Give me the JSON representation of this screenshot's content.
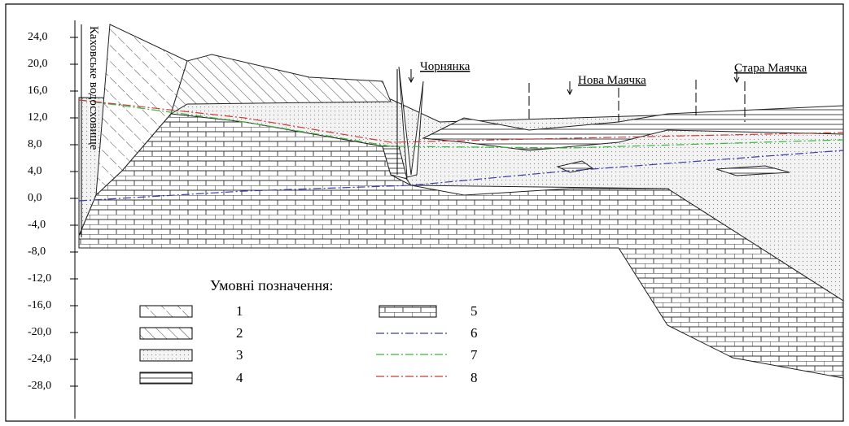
{
  "axis": {
    "ticks": [
      "24,0",
      "20,0",
      "16,0",
      "12,0",
      "8,0",
      "4,0",
      "0,0",
      "-4,0",
      "-8,0",
      "-12,0",
      "-16,0",
      "-20,0",
      "-24,0",
      "-28,0"
    ]
  },
  "labels": {
    "reservoir": "Каховське водосховище",
    "chornyanka": "Чорнянка",
    "nova_mayachka": "Нова Маячка",
    "stara_mayachka": "Стара Маячка"
  },
  "legend": {
    "title": "Умовні позначення:",
    "items": [
      "1",
      "2",
      "3",
      "4",
      "5",
      "6",
      "7",
      "8"
    ]
  }
}
